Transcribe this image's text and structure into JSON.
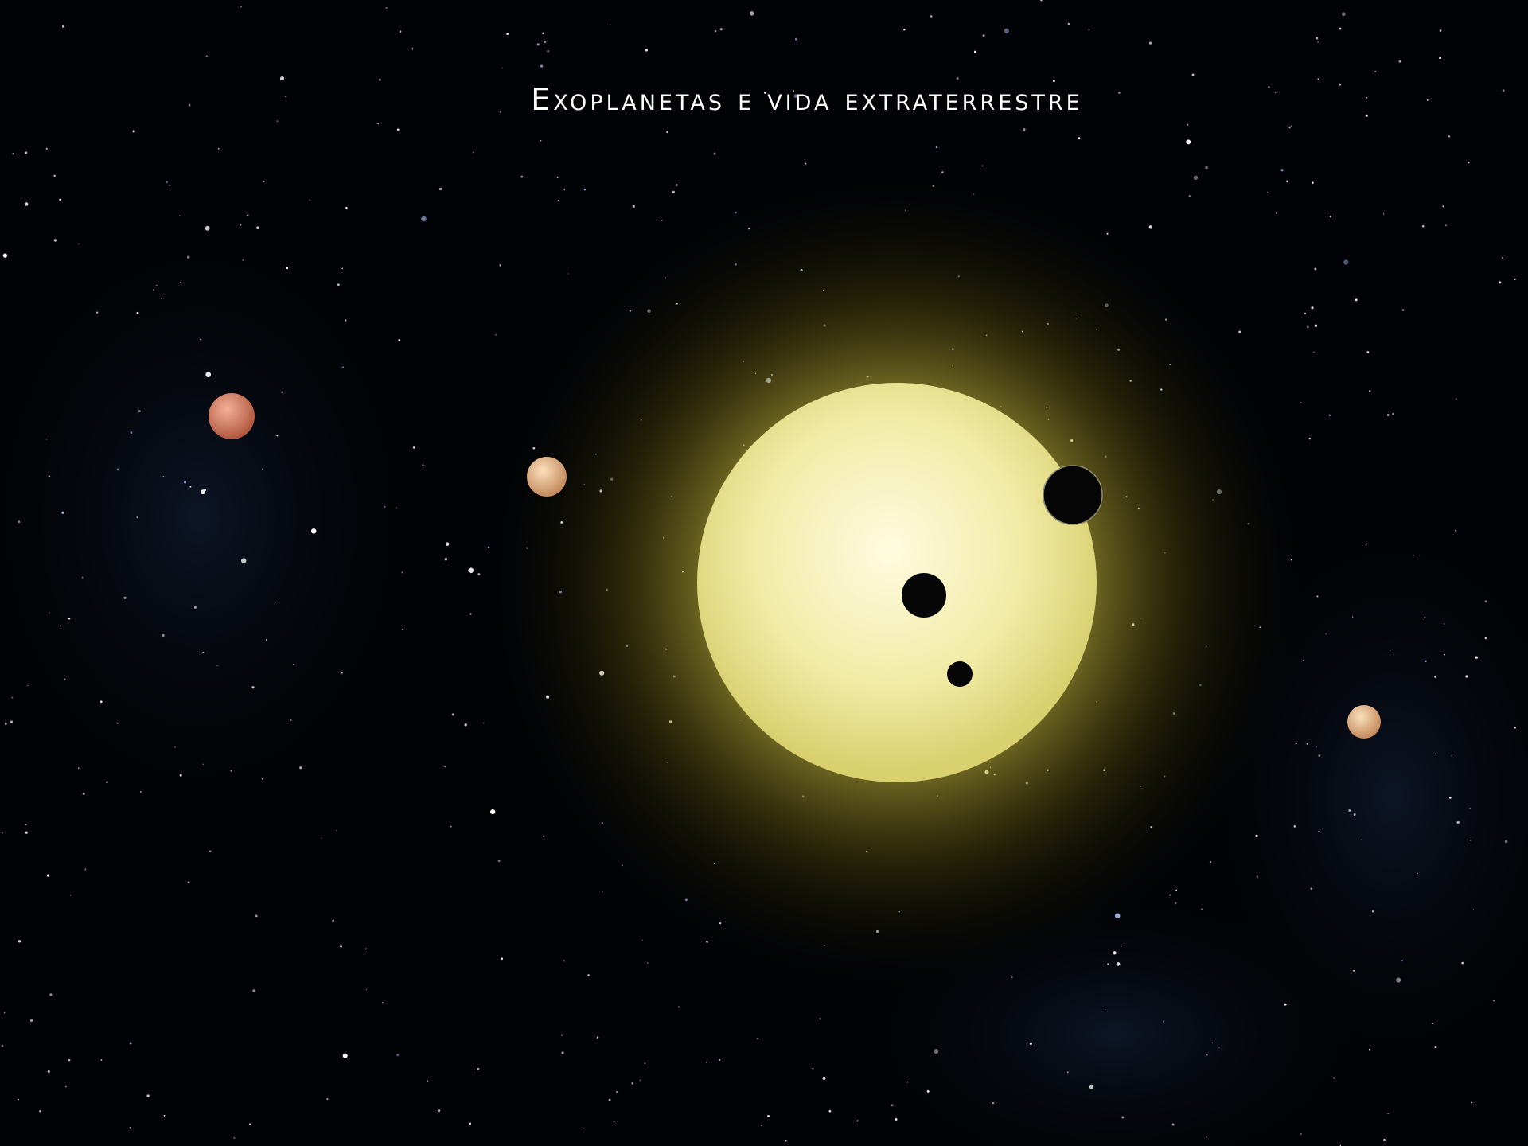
{
  "header": {
    "title": "Exoplanetas e vida extraterrestre"
  }
}
